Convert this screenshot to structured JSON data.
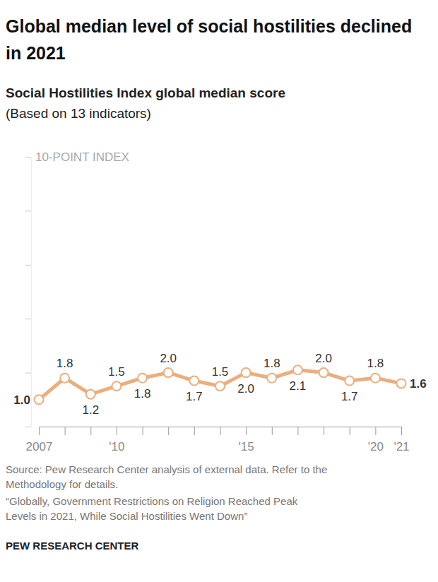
{
  "chart_data": {
    "type": "line",
    "title": "Global median level of social hostilities declined in 2021",
    "subtitle": "Social Hostilities Index global median score",
    "subtitle_note": "(Based on 13 indicators)",
    "y_label": "10-POINT INDEX",
    "categories": [
      "2007",
      null,
      null,
      "'10",
      null,
      null,
      null,
      null,
      "'15",
      null,
      null,
      null,
      null,
      "'20",
      "'21"
    ],
    "values": [
      1.0,
      1.8,
      1.2,
      1.5,
      1.8,
      2.0,
      1.7,
      1.5,
      2.0,
      1.8,
      2.1,
      2.0,
      1.7,
      1.8,
      1.6
    ],
    "value_labels": [
      "1.0",
      "1.8",
      "1.2",
      "1.5",
      "1.8",
      "2.0",
      "1.7",
      "1.5",
      "2.0",
      "1.8",
      "2.1",
      "2.0",
      "1.7",
      "1.8",
      "1.6"
    ],
    "color": "#ecae7d",
    "marker": "circle",
    "data_labels": true,
    "grid": false,
    "tick_labels": "x",
    "ylim": [
      0,
      10
    ],
    "yticks": [
      0,
      2,
      4,
      6,
      8,
      10
    ],
    "footnotes": [
      "Source: Pew Research Center analysis of external data. Refer to the",
      "Methodology for details.",
      "“Globally, Government Restrictions on Religion Reached Peak",
      "Levels in 2021, While Social Hostilities Went Down”"
    ],
    "credit": "PEW RESEARCH CENTER"
  }
}
